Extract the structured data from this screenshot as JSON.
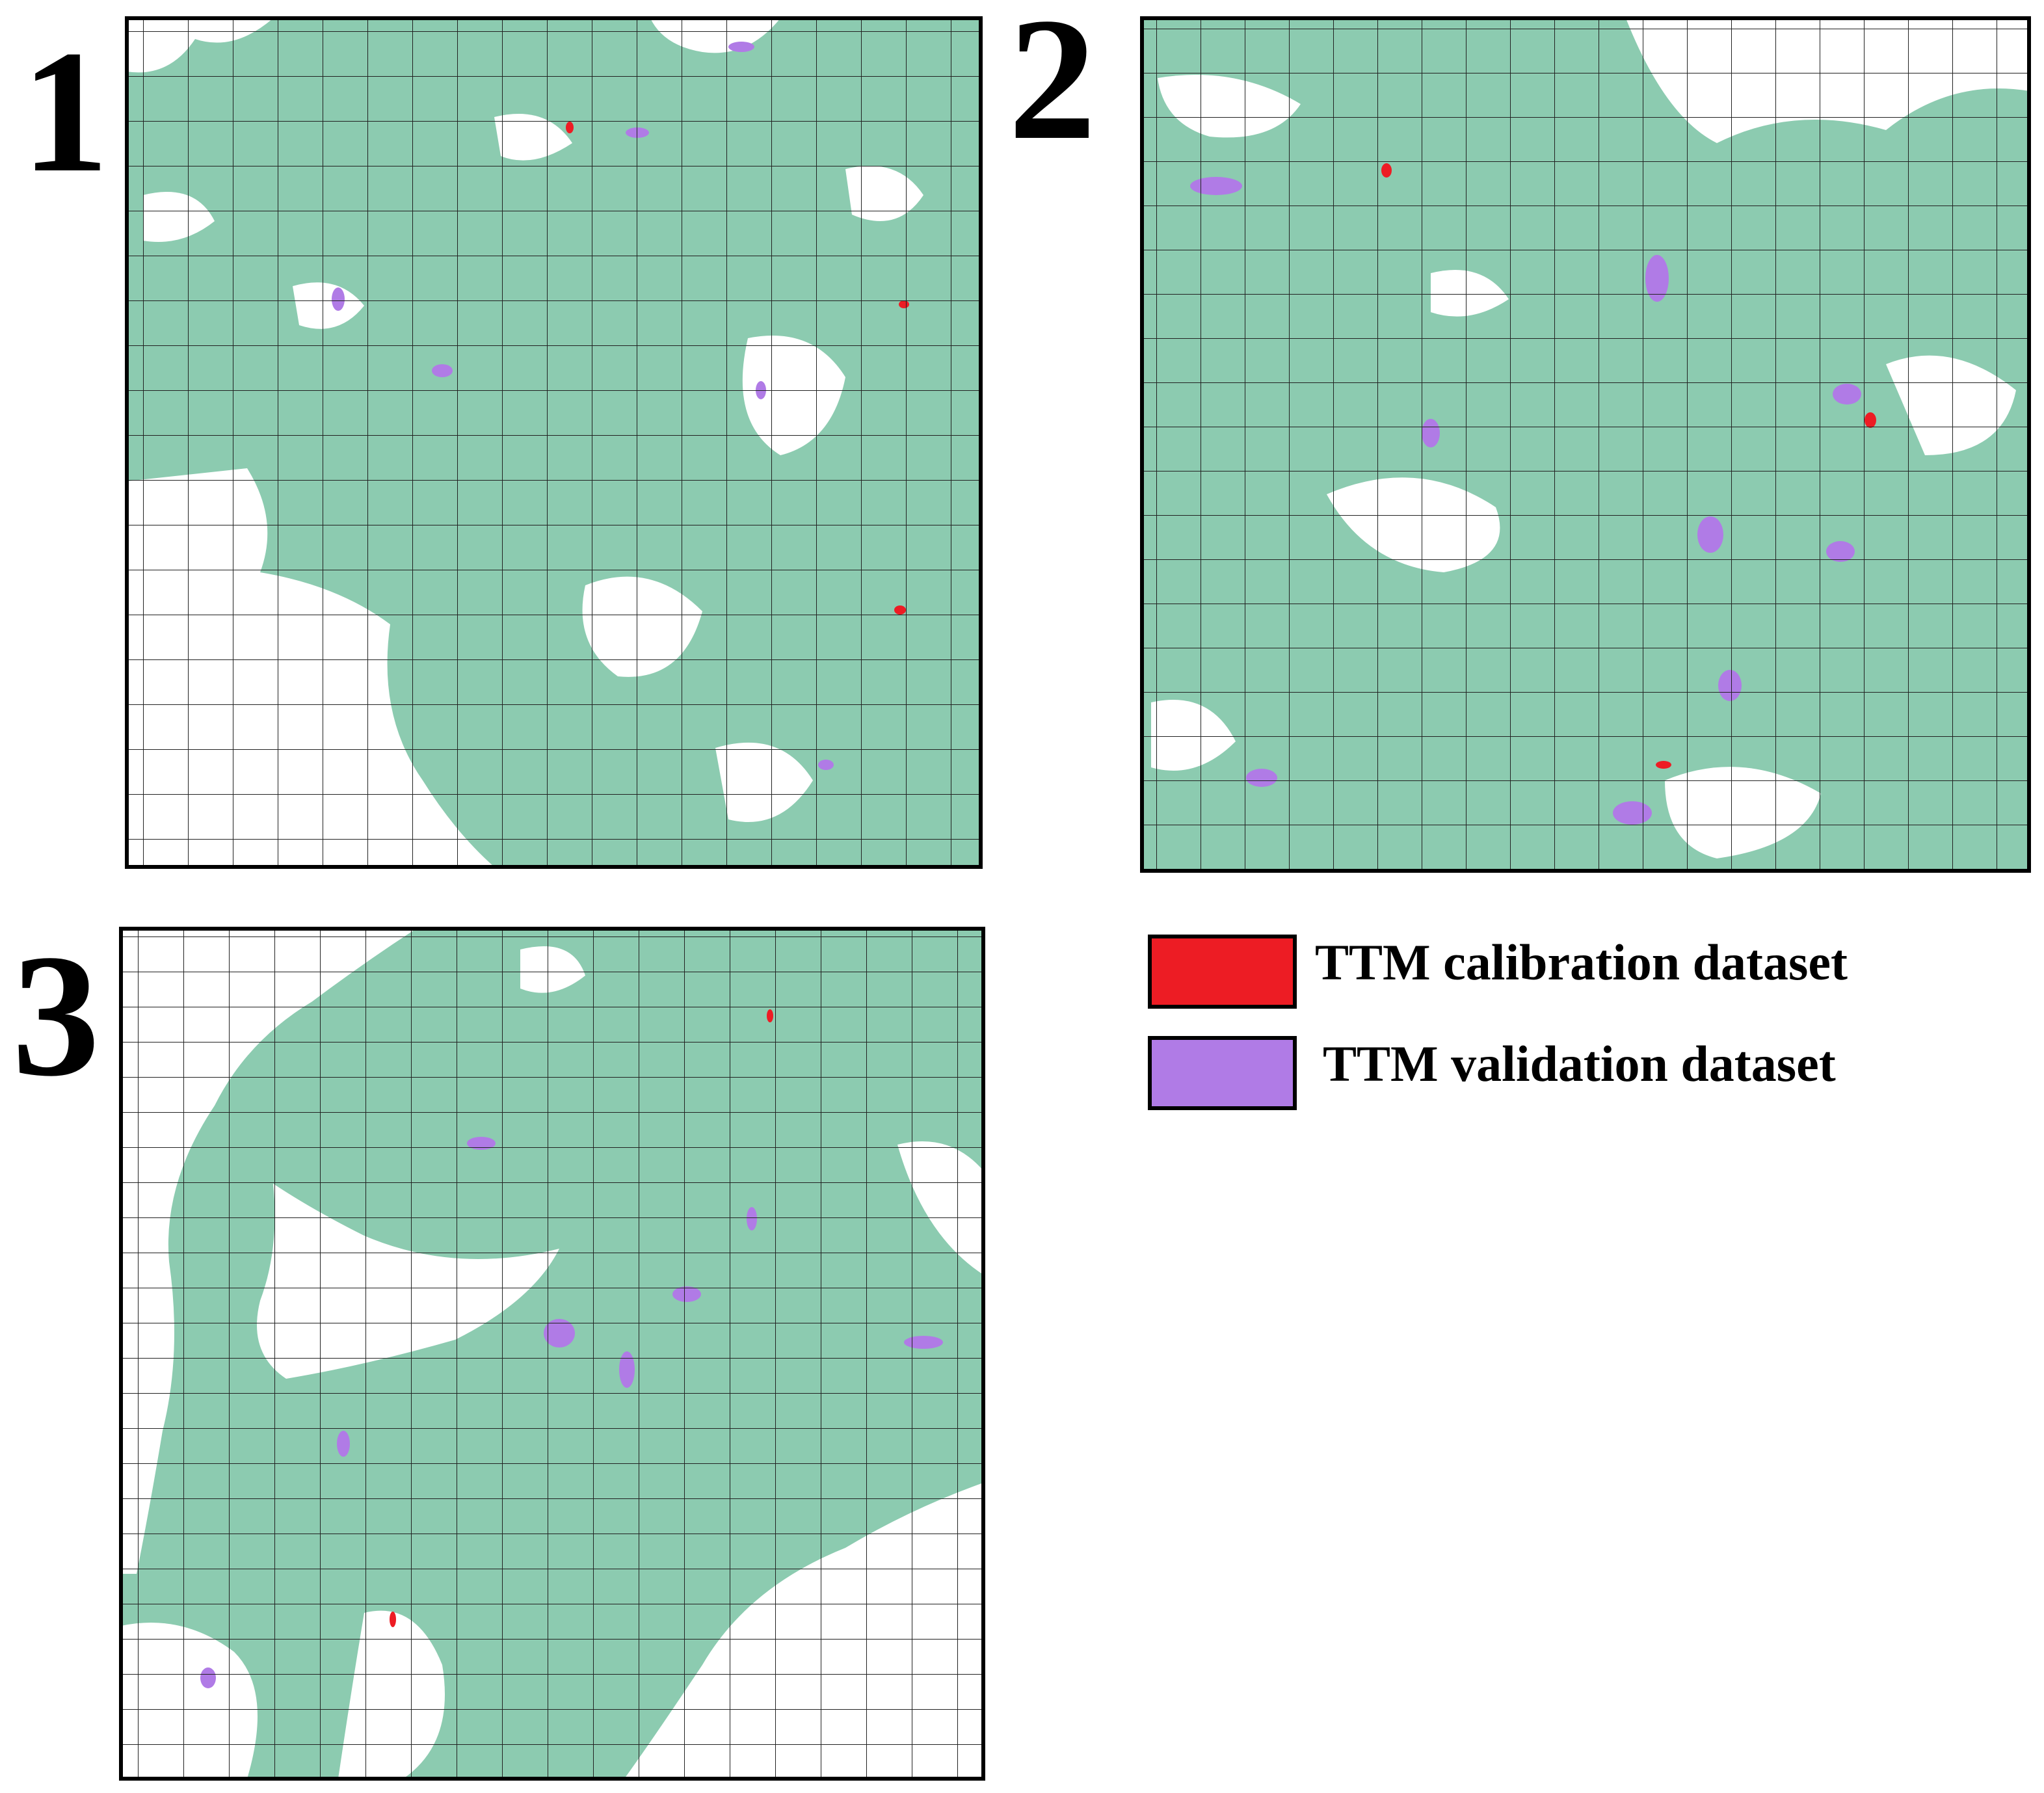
{
  "panels": [
    {
      "label": "1"
    },
    {
      "label": "2"
    },
    {
      "label": "3"
    }
  ],
  "legend": [
    {
      "label": "TTM calibration dataset",
      "color": "#ed1c24"
    },
    {
      "label": "TTM validation dataset",
      "color": "#b07be6"
    }
  ]
}
